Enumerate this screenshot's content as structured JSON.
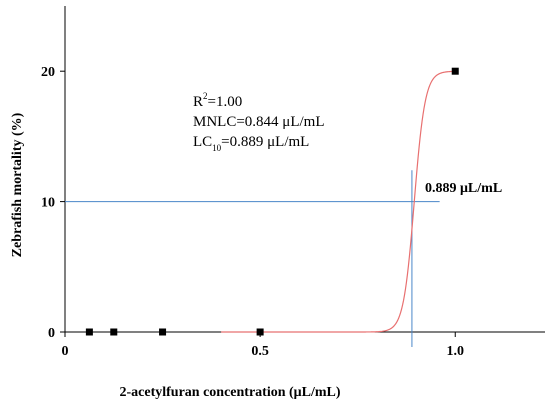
{
  "chart_data": {
    "type": "scatter",
    "xlabel": "2-acetylfuran concentration (μL/mL)",
    "ylabel": "Zebrafish mortality (%)",
    "xlim": [
      0,
      1.23
    ],
    "ylim": [
      0,
      25
    ],
    "x_ticks": [
      0,
      0.5,
      1.0
    ],
    "x_tick_labels": [
      "0",
      "0.5",
      "1.0"
    ],
    "y_ticks": [
      0,
      10,
      20
    ],
    "y_tick_labels": [
      "0",
      "10",
      "20"
    ],
    "grid": false,
    "series": [
      {
        "marker": "square",
        "color": "#000000",
        "points": [
          {
            "x": 0.0625,
            "y": 0
          },
          {
            "x": 0.125,
            "y": 0
          },
          {
            "x": 0.25,
            "y": 0
          },
          {
            "x": 0.5,
            "y": 0
          },
          {
            "x": 1.0,
            "y": 20
          }
        ]
      }
    ],
    "fit_curve": {
      "type": "sigmoid",
      "color": "#e87070",
      "x0": 0.895,
      "k": 72,
      "top": 20,
      "x_start": 0.4,
      "x_end": 1.0
    },
    "reference_lines": {
      "color": "#4a86c8",
      "horizontal_y": 10,
      "vertical_x": 0.889
    },
    "annotation": {
      "r2_prefix": "R",
      "r2_sup": "2",
      "r2_value": "=1.00",
      "mnlc": "MNLC=0.844 μL/mL",
      "lc_prefix": "LC",
      "lc_sub": "10",
      "lc_value": "=0.889 μL/mL",
      "line_label": "0.889 μL/mL"
    }
  }
}
